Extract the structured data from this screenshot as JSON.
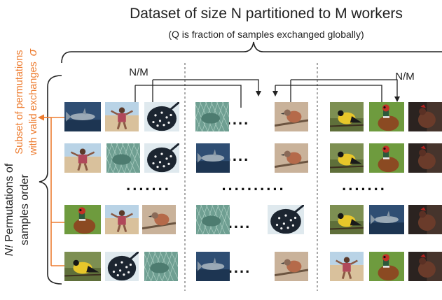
{
  "title": "Dataset of size N partitioned to M workers",
  "subtitle": "(Q is fraction of samples exchanged globally)",
  "left_label": {
    "prefix": "N!",
    "line1_rest": " Permutations of",
    "line2": "samples order"
  },
  "orange_label": {
    "line1": "Subset of permutations",
    "line2": "with valid exchanges",
    "symbol": "σ"
  },
  "exchange_labels": [
    "N/M",
    "N/M"
  ],
  "ellipsis_short": "....",
  "ellipsis_row": ".......",
  "ellipsis_mid": "..........",
  "colors": {
    "text": "#222222",
    "orange": "#ed7d31",
    "line": "#222222",
    "divider": "#555555"
  },
  "thumb_types": {
    "shark": "shark-photo",
    "girl": "girl-on-beach-photo",
    "stingray": "stingray-photo",
    "fish": "fish-in-net-photo",
    "robin": "robin-on-branch-photo",
    "goldfinch": "goldfinch-photo",
    "pheasant": "pheasant-photo",
    "hen": "hen-photo"
  },
  "rows": [
    {
      "w1": [
        "shark",
        "girl",
        "stingray"
      ],
      "w2": [
        "fish",
        "robin"
      ],
      "w3": [
        "goldfinch",
        "pheasant",
        "hen"
      ]
    },
    {
      "w1": [
        "girl",
        "fish",
        "stingray"
      ],
      "w2": [
        "shark",
        "robin"
      ],
      "w3": [
        "goldfinch",
        "pheasant",
        "hen"
      ]
    },
    {
      "w1": [
        "pheasant",
        "girl",
        "robin"
      ],
      "w2": [
        "fish",
        "stingray"
      ],
      "w3": [
        "goldfinch",
        "shark",
        "hen"
      ]
    },
    {
      "w1": [
        "goldfinch",
        "stingray",
        "fish"
      ],
      "w2": [
        "shark",
        "robin"
      ],
      "w3": [
        "girl",
        "pheasant",
        "hen"
      ]
    }
  ]
}
